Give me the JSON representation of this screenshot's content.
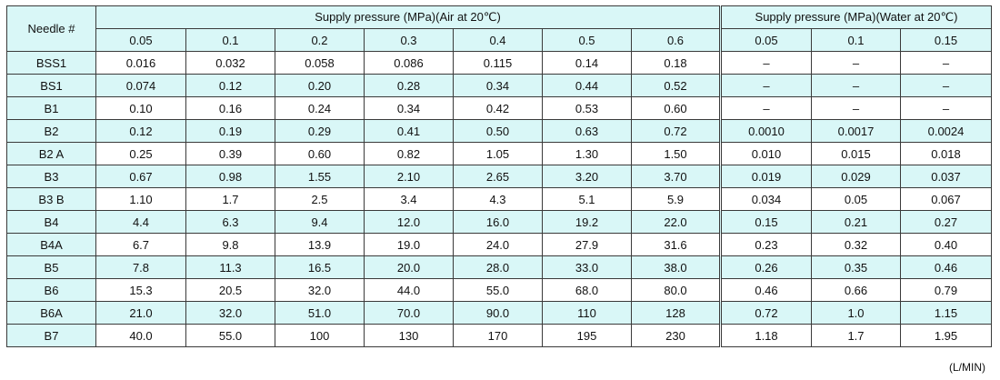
{
  "table": {
    "needle_header": "Needle #",
    "air_header": "Supply pressure (MPa)(Air at 20℃)",
    "water_header": "Supply pressure (MPa)(Water at 20℃)",
    "air_pressures": [
      "0.05",
      "0.1",
      "0.2",
      "0.3",
      "0.4",
      "0.5",
      "0.6"
    ],
    "water_pressures": [
      "0.05",
      "0.1",
      "0.15"
    ],
    "rows": [
      {
        "needle": "BSS1",
        "air": [
          "0.016",
          "0.032",
          "0.058",
          "0.086",
          "0.115",
          "0.14",
          "0.18"
        ],
        "water": [
          "–",
          "–",
          "–"
        ]
      },
      {
        "needle": "BS1",
        "air": [
          "0.074",
          "0.12",
          "0.20",
          "0.28",
          "0.34",
          "0.44",
          "0.52"
        ],
        "water": [
          "–",
          "–",
          "–"
        ]
      },
      {
        "needle": "B1",
        "air": [
          "0.10",
          "0.16",
          "0.24",
          "0.34",
          "0.42",
          "0.53",
          "0.60"
        ],
        "water": [
          "–",
          "–",
          "–"
        ]
      },
      {
        "needle": "B2",
        "air": [
          "0.12",
          "0.19",
          "0.29",
          "0.41",
          "0.50",
          "0.63",
          "0.72"
        ],
        "water": [
          "0.0010",
          "0.0017",
          "0.0024"
        ]
      },
      {
        "needle": "B2 A",
        "air": [
          "0.25",
          "0.39",
          "0.60",
          "0.82",
          "1.05",
          "1.30",
          "1.50"
        ],
        "water": [
          "0.010",
          "0.015",
          "0.018"
        ]
      },
      {
        "needle": "B3",
        "air": [
          "0.67",
          "0.98",
          "1.55",
          "2.10",
          "2.65",
          "3.20",
          "3.70"
        ],
        "water": [
          "0.019",
          "0.029",
          "0.037"
        ]
      },
      {
        "needle": "B3 B",
        "air": [
          "1.10",
          "1.7",
          "2.5",
          "3.4",
          "4.3",
          "5.1",
          "5.9"
        ],
        "water": [
          "0.034",
          "0.05",
          "0.067"
        ]
      },
      {
        "needle": "B4",
        "air": [
          "4.4",
          "6.3",
          "9.4",
          "12.0",
          "16.0",
          "19.2",
          "22.0"
        ],
        "water": [
          "0.15",
          "0.21",
          "0.27"
        ]
      },
      {
        "needle": "B4A",
        "air": [
          "6.7",
          "9.8",
          "13.9",
          "19.0",
          "24.0",
          "27.9",
          "31.6"
        ],
        "water": [
          "0.23",
          "0.32",
          "0.40"
        ]
      },
      {
        "needle": "B5",
        "air": [
          "7.8",
          "11.3",
          "16.5",
          "20.0",
          "28.0",
          "33.0",
          "38.0"
        ],
        "water": [
          "0.26",
          "0.35",
          "0.46"
        ]
      },
      {
        "needle": "B6",
        "air": [
          "15.3",
          "20.5",
          "32.0",
          "44.0",
          "55.0",
          "68.0",
          "80.0"
        ],
        "water": [
          "0.46",
          "0.66",
          "0.79"
        ]
      },
      {
        "needle": "B6A",
        "air": [
          "21.0",
          "32.0",
          "51.0",
          "70.0",
          "90.0",
          "110",
          "128"
        ],
        "water": [
          "0.72",
          "1.0",
          "1.15"
        ]
      },
      {
        "needle": "B7",
        "air": [
          "40.0",
          "55.0",
          "100",
          "130",
          "170",
          "195",
          "230"
        ],
        "water": [
          "1.18",
          "1.7",
          "1.95"
        ]
      }
    ],
    "unit": "(L/MIN)"
  }
}
